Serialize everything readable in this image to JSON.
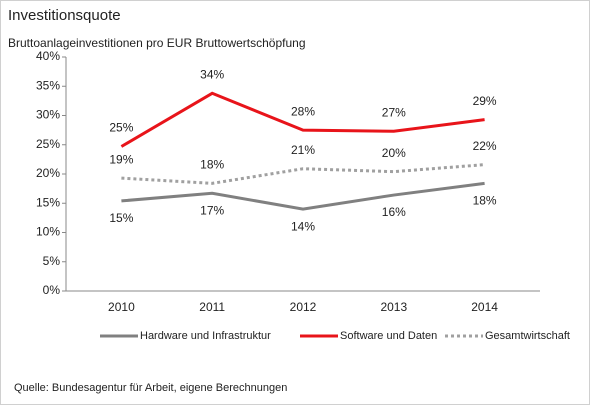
{
  "chart_data": {
    "type": "line",
    "title": "Investitionsquote",
    "subtitle": "Bruttoanlageinvestitionen  pro EUR Bruttowertschöpfung",
    "source": "Quelle:  Bundesagentur  für Arbeit,  eigene Berechnungen",
    "categories": [
      "2010",
      "2011",
      "2012",
      "2013",
      "2014"
    ],
    "series": [
      {
        "name": "Hardware und Infrastruktur",
        "color": "#808080",
        "dash": false,
        "label_position": "below",
        "values": [
          15.4,
          16.7,
          14.0,
          16.4,
          18.4
        ],
        "value_labels": [
          "15%",
          "17%",
          "14%",
          "16%",
          "18%"
        ]
      },
      {
        "name": "Software und Daten",
        "color": "#e8141a",
        "dash": false,
        "label_position": "above",
        "values": [
          24.7,
          33.8,
          27.5,
          27.3,
          29.3
        ],
        "value_labels": [
          "25%",
          "34%",
          "28%",
          "27%",
          "29%"
        ]
      },
      {
        "name": "Gesamtwirtschaft",
        "color": "#a0a0a0",
        "dash": true,
        "label_position": "above",
        "values": [
          19.3,
          18.4,
          20.9,
          20.4,
          21.6
        ],
        "value_labels": [
          "19%",
          "18%",
          "21%",
          "20%",
          "22%"
        ]
      }
    ],
    "ylim": [
      0,
      40
    ],
    "yticks": [
      {
        "value": 0,
        "label": "0%"
      },
      {
        "value": 5,
        "label": "5%"
      },
      {
        "value": 10,
        "label": "10%"
      },
      {
        "value": 15,
        "label": "15%"
      },
      {
        "value": 20,
        "label": "20%"
      },
      {
        "value": 25,
        "label": "25%"
      },
      {
        "value": 30,
        "label": "30%"
      },
      {
        "value": 35,
        "label": "35%"
      },
      {
        "value": 40,
        "label": "40%"
      }
    ],
    "legend": "bottom"
  }
}
